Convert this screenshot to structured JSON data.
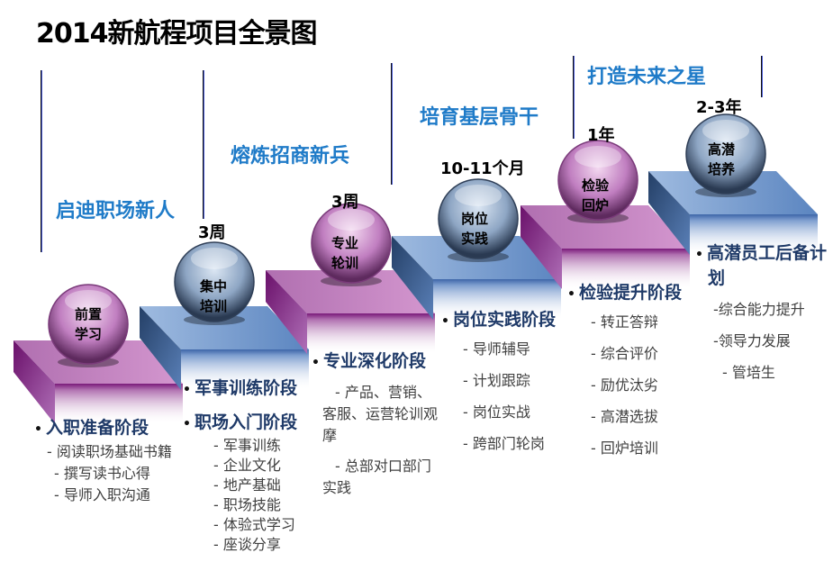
{
  "title": "2014新航程项目全景图",
  "colors": {
    "purple": "#b874b8",
    "blue": "#6a8fc4",
    "section": "#1f7bc8",
    "heading": "#1f3a68"
  },
  "sections": [
    "启迪职场新人",
    "熔炼招商新兵",
    "培育基层骨干",
    "打造未来之星"
  ],
  "durations": [
    "3周",
    "3周",
    "10-11个月",
    "1年",
    "2-3年"
  ],
  "balls": [
    {
      "l1": "前置",
      "l2": "学习"
    },
    {
      "l1": "集中",
      "l2": "培训"
    },
    {
      "l1": "专业",
      "l2": "轮训"
    },
    {
      "l1": "岗位",
      "l2": "实践"
    },
    {
      "l1": "检验",
      "l2": "回炉"
    },
    {
      "l1": "高潜",
      "l2": "培养"
    }
  ],
  "stages": [
    {
      "heading": "入职准备阶段",
      "items": [
        "- 阅读职场基础书籍",
        "- 撰写读书心得",
        "- 导师入职沟通"
      ]
    },
    {
      "heading": "军事训练阶段",
      "heading2": "职场入门阶段",
      "items": [
        "- 军事训练",
        "- 企业文化",
        "- 地产基础",
        "- 职场技能",
        "- 体验式学习",
        "- 座谈分享"
      ]
    },
    {
      "heading": "专业深化阶段",
      "items": [
        "- 产品、营销、客服、运营轮训观摩",
        "- 总部对口部门实践"
      ]
    },
    {
      "heading": "岗位实践阶段",
      "items": [
        "- 导师辅导",
        "- 计划跟踪",
        "- 岗位实战",
        "- 跨部门轮岗"
      ]
    },
    {
      "heading": "检验提升阶段",
      "items": [
        "- 转正答辩",
        "- 综合评价",
        "- 励优汰劣",
        "- 高潜选拔",
        "- 回炉培训"
      ]
    },
    {
      "heading": "高潜员工后备计划",
      "items": [
        "-综合能力提升",
        "-领导力发展",
        "- 管培生"
      ]
    }
  ]
}
